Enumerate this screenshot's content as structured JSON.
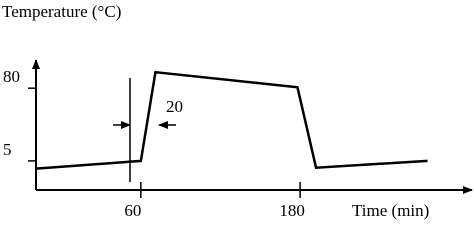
{
  "chart_data": {
    "type": "line",
    "y_label": "Temperature (°C)",
    "x_label": "Time (min)",
    "annotations": [
      "20"
    ],
    "x": [
      -19,
      60,
      71,
      178,
      192,
      276
    ],
    "series": [
      {
        "color": "#000000",
        "values": [
          -3,
          5,
          96.5,
          81,
          -2,
          5
        ]
      }
    ],
    "xlim": [
      -19,
      308
    ],
    "ylim": [
      -25,
      107
    ],
    "xticks": [
      60,
      180
    ],
    "yticks": [
      5,
      80
    ]
  }
}
